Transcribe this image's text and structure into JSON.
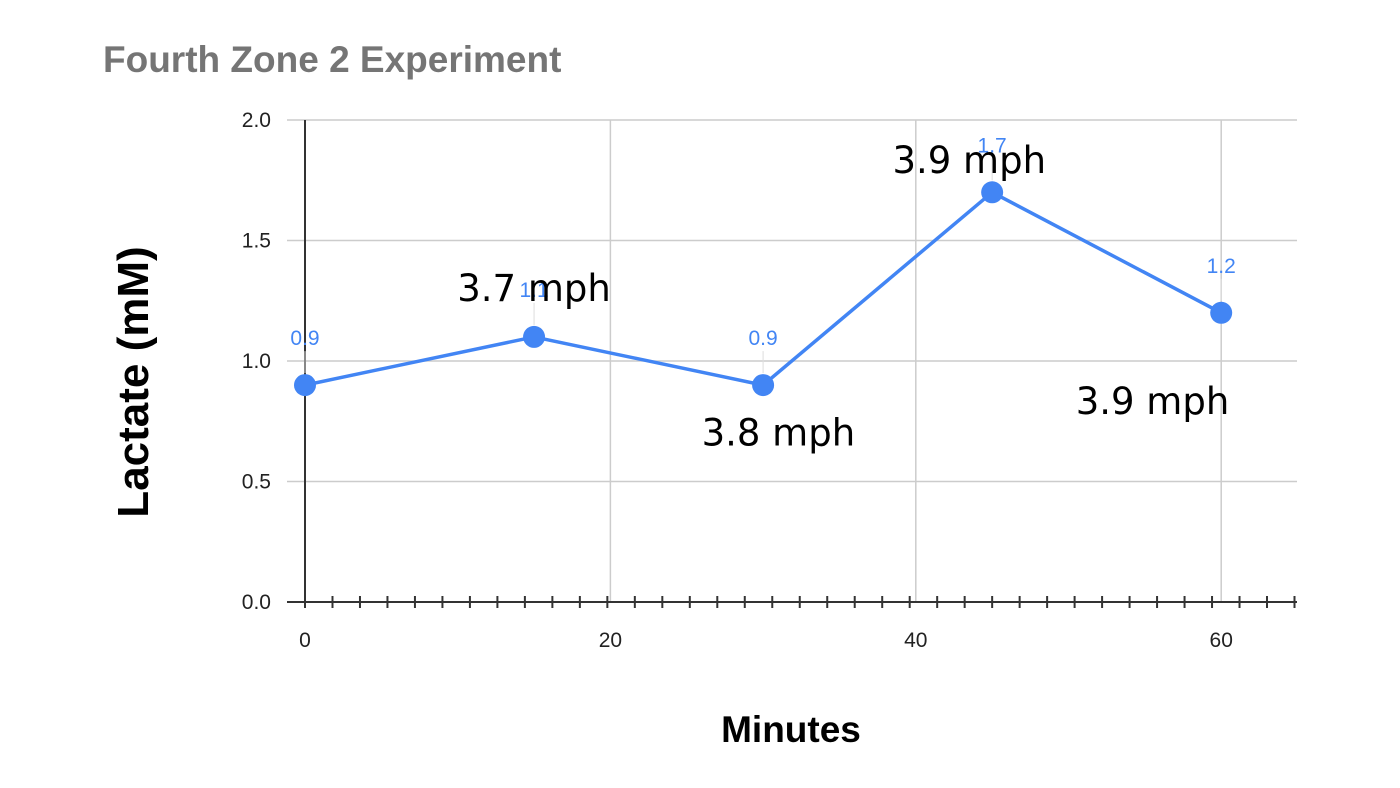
{
  "chart_data": {
    "type": "line",
    "title": "Fourth Zone 2 Experiment",
    "xlabel": "Minutes",
    "ylabel": "Lactate (mM)",
    "xlim": [
      0,
      65
    ],
    "ylim": [
      0,
      2.0
    ],
    "x_ticks": [
      "0",
      "20",
      "40",
      "60"
    ],
    "y_ticks": [
      "0.0",
      "0.5",
      "1.0",
      "1.5",
      "2.0"
    ],
    "grid": true,
    "legend": "none",
    "series": [
      {
        "color": "#4285f4",
        "points": [
          {
            "x": 0,
            "y": 0.9,
            "label": "0.9"
          },
          {
            "x": 15,
            "y": 1.1,
            "label": "1.1"
          },
          {
            "x": 30,
            "y": 0.9,
            "label": "0.9"
          },
          {
            "x": 45,
            "y": 1.7,
            "label": "1.7"
          },
          {
            "x": 60,
            "y": 1.2,
            "label": "1.2"
          }
        ]
      }
    ],
    "annotations": [
      {
        "text": "3.7 mph",
        "x": 15,
        "y": 1.25
      },
      {
        "text": "3.8 mph",
        "x": 31,
        "y": 0.65
      },
      {
        "text": "3.9 mph",
        "x": 43.5,
        "y": 1.78
      },
      {
        "text": "3.9 mph",
        "x": 55.5,
        "y": 0.78
      }
    ]
  }
}
